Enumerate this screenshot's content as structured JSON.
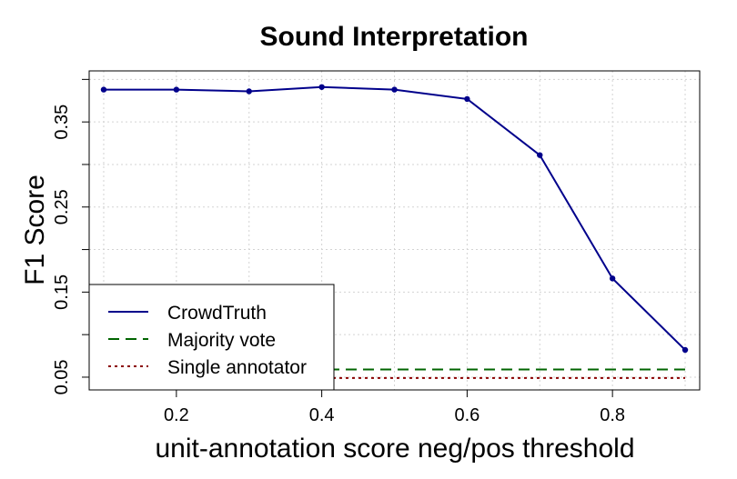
{
  "chart_data": {
    "type": "line",
    "title": "Sound Interpretation",
    "xlabel": "unit-annotation score neg/pos threshold",
    "ylabel": "F1 Score",
    "xlim": [
      0.08,
      0.92
    ],
    "ylim": [
      0.035,
      0.41
    ],
    "x_ticks": [
      0.2,
      0.4,
      0.6,
      0.8
    ],
    "x_tick_labels": [
      "0.2",
      "0.4",
      "0.6",
      "0.8"
    ],
    "y_ticks": [
      0.05,
      0.1,
      0.15,
      0.2,
      0.25,
      0.3,
      0.35,
      0.4
    ],
    "y_tick_labels": [
      "0.05",
      "",
      "0.15",
      "",
      "0.25",
      "",
      "0.35",
      ""
    ],
    "grid": true,
    "legend_position": "bottom-left",
    "series": [
      {
        "name": "CrowdTruth",
        "color": "#00008b",
        "line_style": "solid",
        "markers": true,
        "x": [
          0.1,
          0.2,
          0.3,
          0.4,
          0.5,
          0.6,
          0.7,
          0.8,
          0.9
        ],
        "y": [
          0.388,
          0.388,
          0.386,
          0.391,
          0.388,
          0.377,
          0.311,
          0.166,
          0.082
        ]
      },
      {
        "name": "Majority vote",
        "color": "#006400",
        "line_style": "dashed",
        "markers": false,
        "x": [
          0.1,
          0.9
        ],
        "y": [
          0.059,
          0.059
        ]
      },
      {
        "name": "Single annotator",
        "color": "#8b0000",
        "line_style": "dotted",
        "markers": false,
        "x": [
          0.1,
          0.9
        ],
        "y": [
          0.049,
          0.049
        ]
      }
    ]
  }
}
